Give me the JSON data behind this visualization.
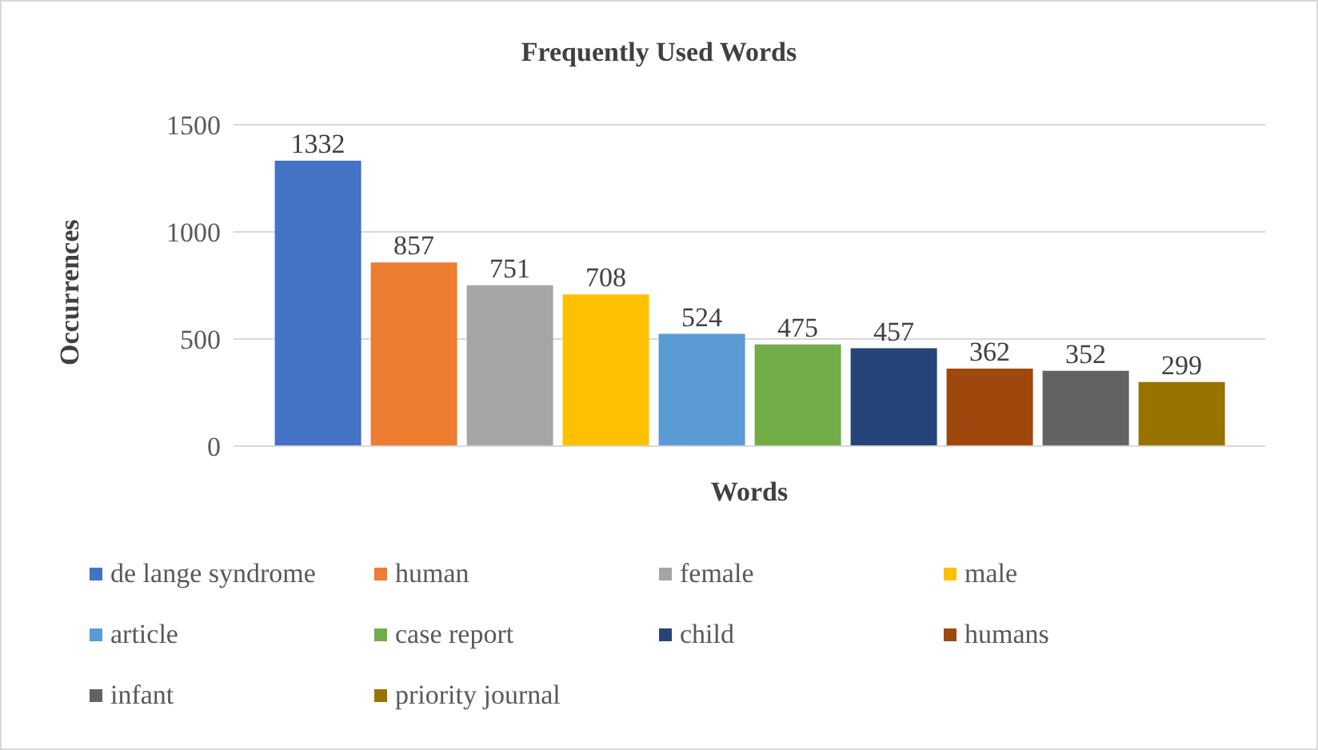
{
  "chart_data": {
    "type": "bar",
    "title": "Frequently Used Words",
    "xlabel": "Words",
    "ylabel": "Occurrences",
    "categories": [
      null
    ],
    "series": [
      {
        "name": "de lange syndrome",
        "color": "#4472c4",
        "values": [
          1332
        ]
      },
      {
        "name": "human",
        "color": "#ed7d31",
        "values": [
          857
        ]
      },
      {
        "name": "female",
        "color": "#a5a5a5",
        "values": [
          751
        ]
      },
      {
        "name": "male",
        "color": "#ffc000",
        "values": [
          708
        ]
      },
      {
        "name": "article",
        "color": "#5b9bd5",
        "values": [
          524
        ]
      },
      {
        "name": "case report",
        "color": "#70ad47",
        "values": [
          475
        ]
      },
      {
        "name": "child",
        "color": "#264478",
        "values": [
          457
        ]
      },
      {
        "name": "humans",
        "color": "#9e480e",
        "values": [
          362
        ]
      },
      {
        "name": "infant",
        "color": "#636363",
        "values": [
          352
        ]
      },
      {
        "name": "priority journal",
        "color": "#997300",
        "values": [
          299
        ]
      }
    ],
    "ylim": [
      0,
      1500
    ],
    "yticks": [
      0,
      500,
      1000,
      1500
    ],
    "grid": "y",
    "legend": "bottom",
    "data_labels": true
  }
}
